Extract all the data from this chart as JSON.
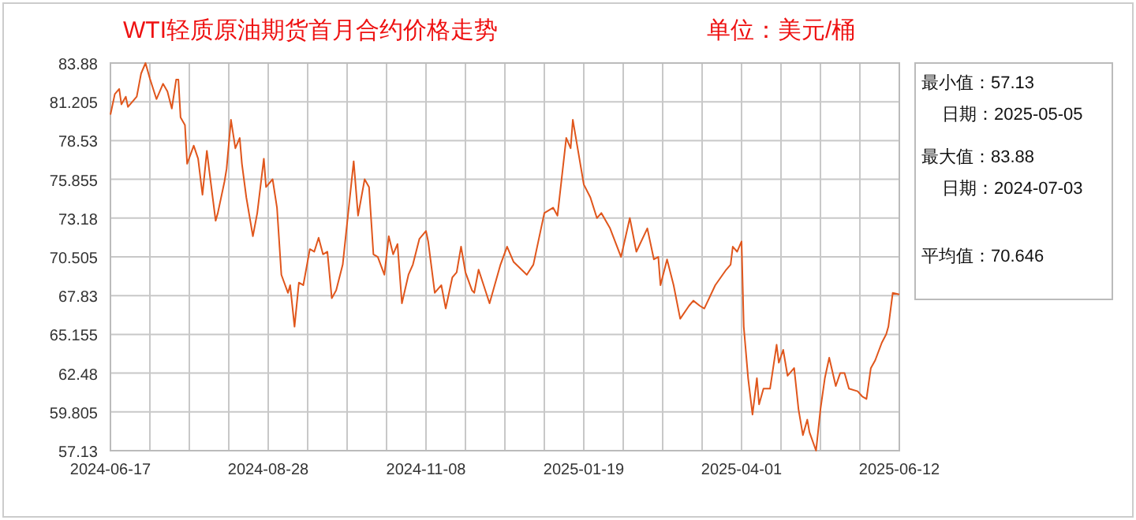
{
  "chart_data": {
    "type": "line",
    "title": "WTI轻质原油期货首月合约价格走势",
    "subtitle": "单位：美元/桶",
    "annotations": [
      "最小值：57.13",
      "日期：2025-05-05",
      "最大值：83.88",
      "日期：2024-07-03",
      "平均值：70.646"
    ],
    "x": [
      "2024-06-17",
      "2024-06-19",
      "2024-06-21",
      "2024-06-22",
      "2024-06-24",
      "2024-06-25",
      "2024-06-28",
      "2024-06-29",
      "2024-07-01",
      "2024-07-03",
      "2024-07-05",
      "2024-07-08",
      "2024-07-11",
      "2024-07-13",
      "2024-07-15",
      "2024-07-17",
      "2024-07-18",
      "2024-07-19",
      "2024-07-21",
      "2024-07-22",
      "2024-07-25",
      "2024-07-27",
      "2024-07-29",
      "2024-07-31",
      "2024-08-01",
      "2024-08-04",
      "2024-08-05",
      "2024-08-08",
      "2024-08-09",
      "2024-08-11",
      "2024-08-13",
      "2024-08-15",
      "2024-08-16",
      "2024-08-18",
      "2024-08-21",
      "2024-08-23",
      "2024-08-26",
      "2024-08-27",
      "2024-08-30",
      "2024-09-01",
      "2024-09-03",
      "2024-09-06",
      "2024-09-07",
      "2024-09-09",
      "2024-09-11",
      "2024-09-13",
      "2024-09-16",
      "2024-09-18",
      "2024-09-20",
      "2024-09-22",
      "2024-09-24",
      "2024-09-26",
      "2024-09-28",
      "2024-10-01",
      "2024-10-03",
      "2024-10-06",
      "2024-10-08",
      "2024-10-11",
      "2024-10-13",
      "2024-10-15",
      "2024-10-17",
      "2024-10-20",
      "2024-10-22",
      "2024-10-24",
      "2024-10-26",
      "2024-10-28",
      "2024-10-31",
      "2024-11-02",
      "2024-11-05",
      "2024-11-08",
      "2024-11-09",
      "2024-11-12",
      "2024-11-15",
      "2024-11-17",
      "2024-11-20",
      "2024-11-22",
      "2024-11-24",
      "2024-11-26",
      "2024-11-29",
      "2024-11-30",
      "2024-12-02",
      "2024-12-07",
      "2024-12-12",
      "2024-12-15",
      "2024-12-18",
      "2024-12-24",
      "2024-12-27",
      "2025-01-01",
      "2025-01-05",
      "2025-01-07",
      "2025-01-11",
      "2025-01-13",
      "2025-01-14",
      "2025-01-18",
      "2025-01-19",
      "2025-01-22",
      "2025-01-25",
      "2025-01-27",
      "2025-01-31",
      "2025-02-05",
      "2025-02-09",
      "2025-02-12",
      "2025-02-17",
      "2025-02-20",
      "2025-02-22",
      "2025-02-23",
      "2025-02-26",
      "2025-03-01",
      "2025-03-04",
      "2025-03-08",
      "2025-03-10",
      "2025-03-13",
      "2025-03-15",
      "2025-03-20",
      "2025-03-25",
      "2025-03-27",
      "2025-03-28",
      "2025-03-30",
      "2025-04-01",
      "2025-04-02",
      "2025-04-04",
      "2025-04-06",
      "2025-04-08",
      "2025-04-09",
      "2025-04-11",
      "2025-04-14",
      "2025-04-17",
      "2025-04-18",
      "2025-04-20",
      "2025-04-22",
      "2025-04-25",
      "2025-04-27",
      "2025-04-29",
      "2025-05-01",
      "2025-05-02",
      "2025-05-05",
      "2025-05-07",
      "2025-05-09",
      "2025-05-11",
      "2025-05-14",
      "2025-05-16",
      "2025-05-18",
      "2025-05-20",
      "2025-05-24",
      "2025-05-26",
      "2025-05-28",
      "2025-05-30",
      "2025-06-01",
      "2025-06-04",
      "2025-06-06",
      "2025-06-07",
      "2025-06-09",
      "2025-06-12"
    ],
    "series": [
      {
        "color": "#e0561c",
        "values": [
          80.32,
          81.74,
          82.09,
          81.03,
          81.56,
          80.85,
          81.39,
          81.56,
          83.16,
          83.88,
          82.81,
          81.39,
          82.45,
          81.92,
          80.74,
          82.74,
          82.74,
          80.13,
          79.6,
          76.93,
          78.18,
          77.28,
          74.79,
          77.82,
          76.57,
          73.0,
          73.53,
          75.67,
          76.57,
          79.96,
          78.0,
          78.71,
          76.93,
          74.61,
          71.93,
          73.53,
          77.28,
          75.32,
          75.86,
          73.9,
          69.27,
          68.02,
          68.55,
          65.69,
          68.73,
          68.55,
          71.04,
          70.86,
          71.82,
          70.68,
          70.86,
          67.65,
          68.19,
          69.97,
          72.82,
          77.1,
          73.35,
          75.86,
          75.32,
          70.68,
          70.5,
          69.27,
          71.93,
          70.68,
          71.39,
          67.3,
          69.27,
          69.97,
          71.75,
          72.29,
          71.57,
          68.02,
          68.55,
          66.94,
          69.08,
          69.44,
          71.21,
          69.44,
          68.19,
          68.02,
          69.62,
          67.3,
          69.97,
          71.21,
          70.15,
          69.27,
          69.97,
          73.53,
          73.9,
          73.35,
          78.71,
          78.0,
          79.96,
          76.4,
          75.5,
          74.61,
          73.18,
          73.53,
          72.47,
          70.5,
          73.18,
          70.86,
          72.47,
          70.33,
          70.5,
          68.55,
          70.33,
          68.55,
          66.23,
          67.12,
          67.48,
          67.12,
          66.94,
          68.55,
          69.62,
          69.97,
          71.21,
          70.86,
          71.57,
          65.69,
          62.13,
          59.62,
          62.13,
          60.33,
          61.41,
          61.41,
          64.44,
          63.2,
          64.09,
          62.3,
          62.83,
          59.98,
          58.2,
          59.27,
          58.4,
          57.13,
          59.98,
          62.13,
          63.55,
          61.59,
          62.48,
          62.48,
          61.41,
          61.23,
          60.88,
          60.7,
          62.83,
          63.37,
          64.58,
          65.16,
          65.69,
          68.02,
          67.91
        ]
      }
    ],
    "xlim": [
      "2024-06-17",
      "2025-06-12"
    ],
    "xticks": [
      "2024-06-17",
      {
        "value": "2024-07-05",
        "label": null
      },
      {
        "value": "2024-07-23",
        "label": null
      },
      {
        "value": "2024-08-10",
        "label": null
      },
      "2024-08-28",
      {
        "value": "2024-09-15",
        "label": null
      },
      {
        "value": "2024-10-03",
        "label": null
      },
      {
        "value": "2024-10-21",
        "label": null
      },
      "2024-11-08",
      {
        "value": "2024-11-26",
        "label": null
      },
      {
        "value": "2024-12-14",
        "label": null
      },
      {
        "value": "2025-01-01",
        "label": null
      },
      "2025-01-19",
      {
        "value": "2025-02-06",
        "label": null
      },
      {
        "value": "2025-02-24",
        "label": null
      },
      {
        "value": "2025-03-14",
        "label": null
      },
      "2025-04-01",
      {
        "value": "2025-04-19",
        "label": null
      },
      {
        "value": "2025-05-07",
        "label": null
      },
      {
        "value": "2025-05-25",
        "label": null
      },
      "2025-06-12"
    ],
    "ylim": [
      57.13,
      83.88
    ],
    "yticks": [
      57.13,
      59.805,
      62.48,
      65.155,
      67.83,
      70.505,
      73.18,
      75.855,
      78.53,
      81.205,
      83.88
    ],
    "grid": true
  }
}
